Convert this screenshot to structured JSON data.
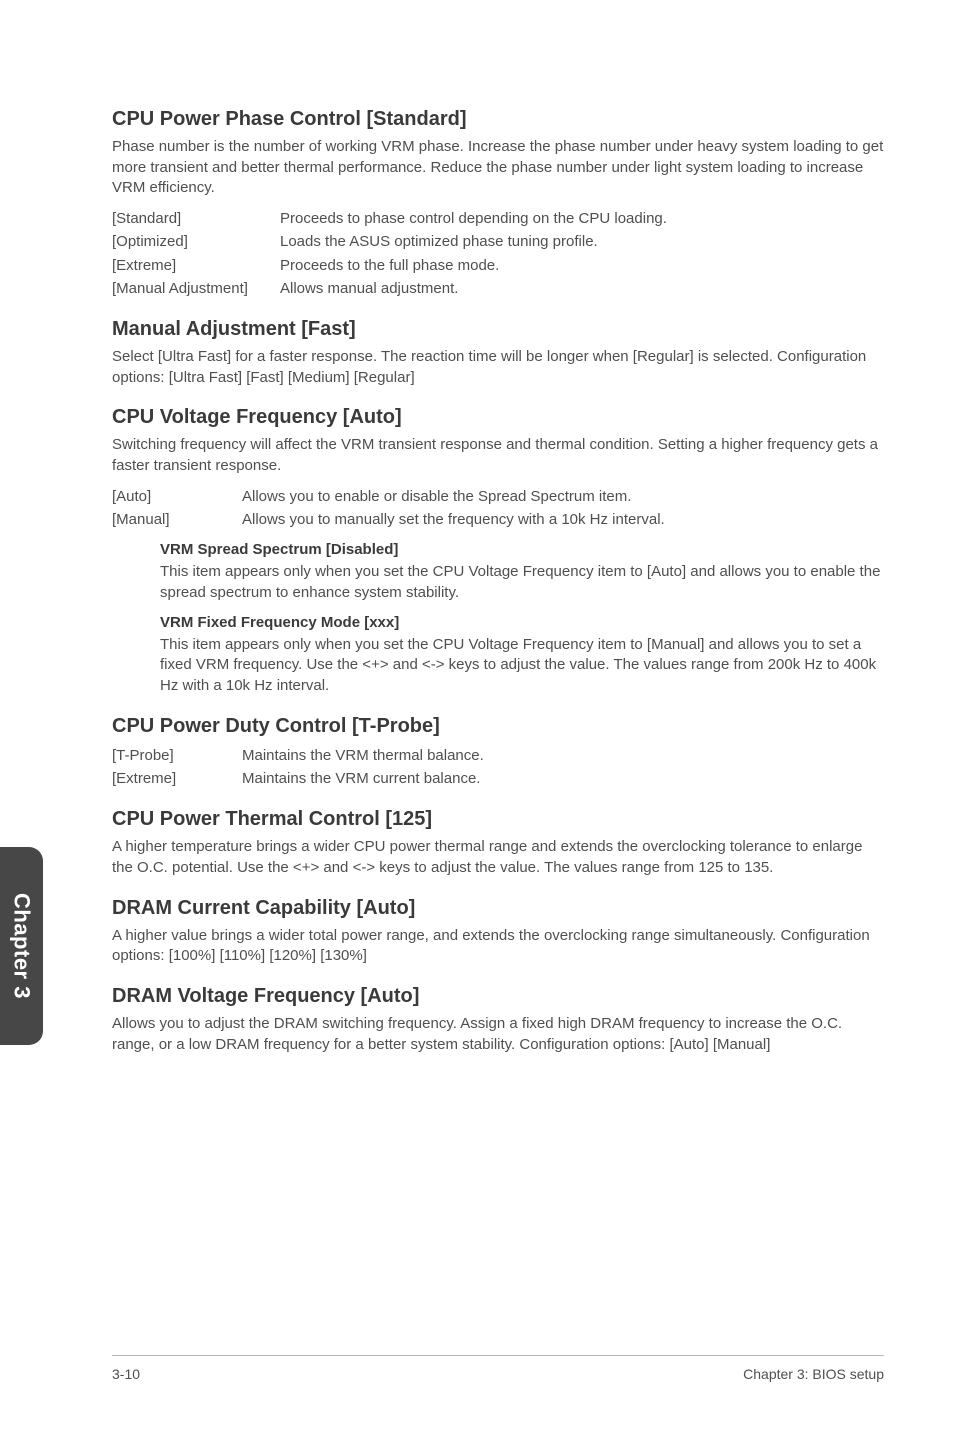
{
  "sidebar": {
    "label": "Chapter 3"
  },
  "footer": {
    "page": "3-10",
    "chapter": "Chapter 3: BIOS setup"
  },
  "sections": {
    "s1": {
      "title": "CPU Power Phase Control [Standard]",
      "para": "Phase number is the number of working VRM phase. Increase the phase number under heavy system loading to get more transient and better thermal performance. Reduce the phase number under light system loading to increase VRM efficiency.",
      "rows": [
        {
          "term": "[Standard]",
          "desc": "Proceeds to phase control depending on the CPU loading."
        },
        {
          "term": "[Optimized]",
          "desc": "Loads the ASUS optimized phase tuning profile."
        },
        {
          "term": "[Extreme]",
          "desc": "Proceeds to the full phase mode."
        },
        {
          "term": "[Manual Adjustment]",
          "desc": "Allows manual adjustment."
        }
      ]
    },
    "s2": {
      "title": "Manual Adjustment [Fast]",
      "para": "Select [Ultra Fast] for a faster response. The reaction time will be longer when [Regular] is selected. Configuration options: [Ultra Fast] [Fast] [Medium] [Regular]"
    },
    "s3": {
      "title": "CPU Voltage Frequency [Auto]",
      "para": "Switching frequency will affect the VRM transient response and thermal condition. Setting a higher frequency gets a faster transient response.",
      "rows": [
        {
          "term": "[Auto]",
          "desc": "Allows you to enable or disable the Spread Spectrum item."
        },
        {
          "term": "[Manual]",
          "desc": "Allows you to manually set the frequency with a 10k Hz interval."
        }
      ],
      "sub1": {
        "title": "VRM Spread Spectrum [Disabled]",
        "para": "This item appears only when you set the CPU Voltage Frequency item to [Auto] and allows you to enable the spread spectrum to enhance system stability."
      },
      "sub2": {
        "title": "VRM Fixed Frequency Mode [xxx]",
        "para": "This item appears only when you set the CPU Voltage Frequency item to [Manual] and allows you to set a fixed VRM frequency. Use the <+> and <-> keys to adjust the value. The values range from 200k Hz to 400k Hz with a 10k Hz interval."
      }
    },
    "s4": {
      "title": "CPU Power Duty Control [T-Probe]",
      "rows": [
        {
          "term": "[T-Probe]",
          "desc": "Maintains the VRM thermal balance."
        },
        {
          "term": "[Extreme]",
          "desc": "Maintains the VRM current balance."
        }
      ]
    },
    "s5": {
      "title": "CPU Power Thermal Control [125]",
      "para": "A higher temperature brings a wider CPU power thermal range and extends the overclocking tolerance to enlarge the O.C. potential. Use the <+> and <-> keys to adjust the value. The values range from 125 to 135."
    },
    "s6": {
      "title": "DRAM Current Capability [Auto]",
      "para": "A higher value brings a wider total power range, and extends the overclocking range simultaneously. Configuration options: [100%] [110%] [120%] [130%]"
    },
    "s7": {
      "title": "DRAM Voltage Frequency [Auto]",
      "para": "Allows you to adjust the DRAM switching frequency. Assign a fixed high DRAM frequency to increase the O.C. range, or a low DRAM frequency for a better system stability. Configuration options: [Auto] [Manual]"
    }
  }
}
